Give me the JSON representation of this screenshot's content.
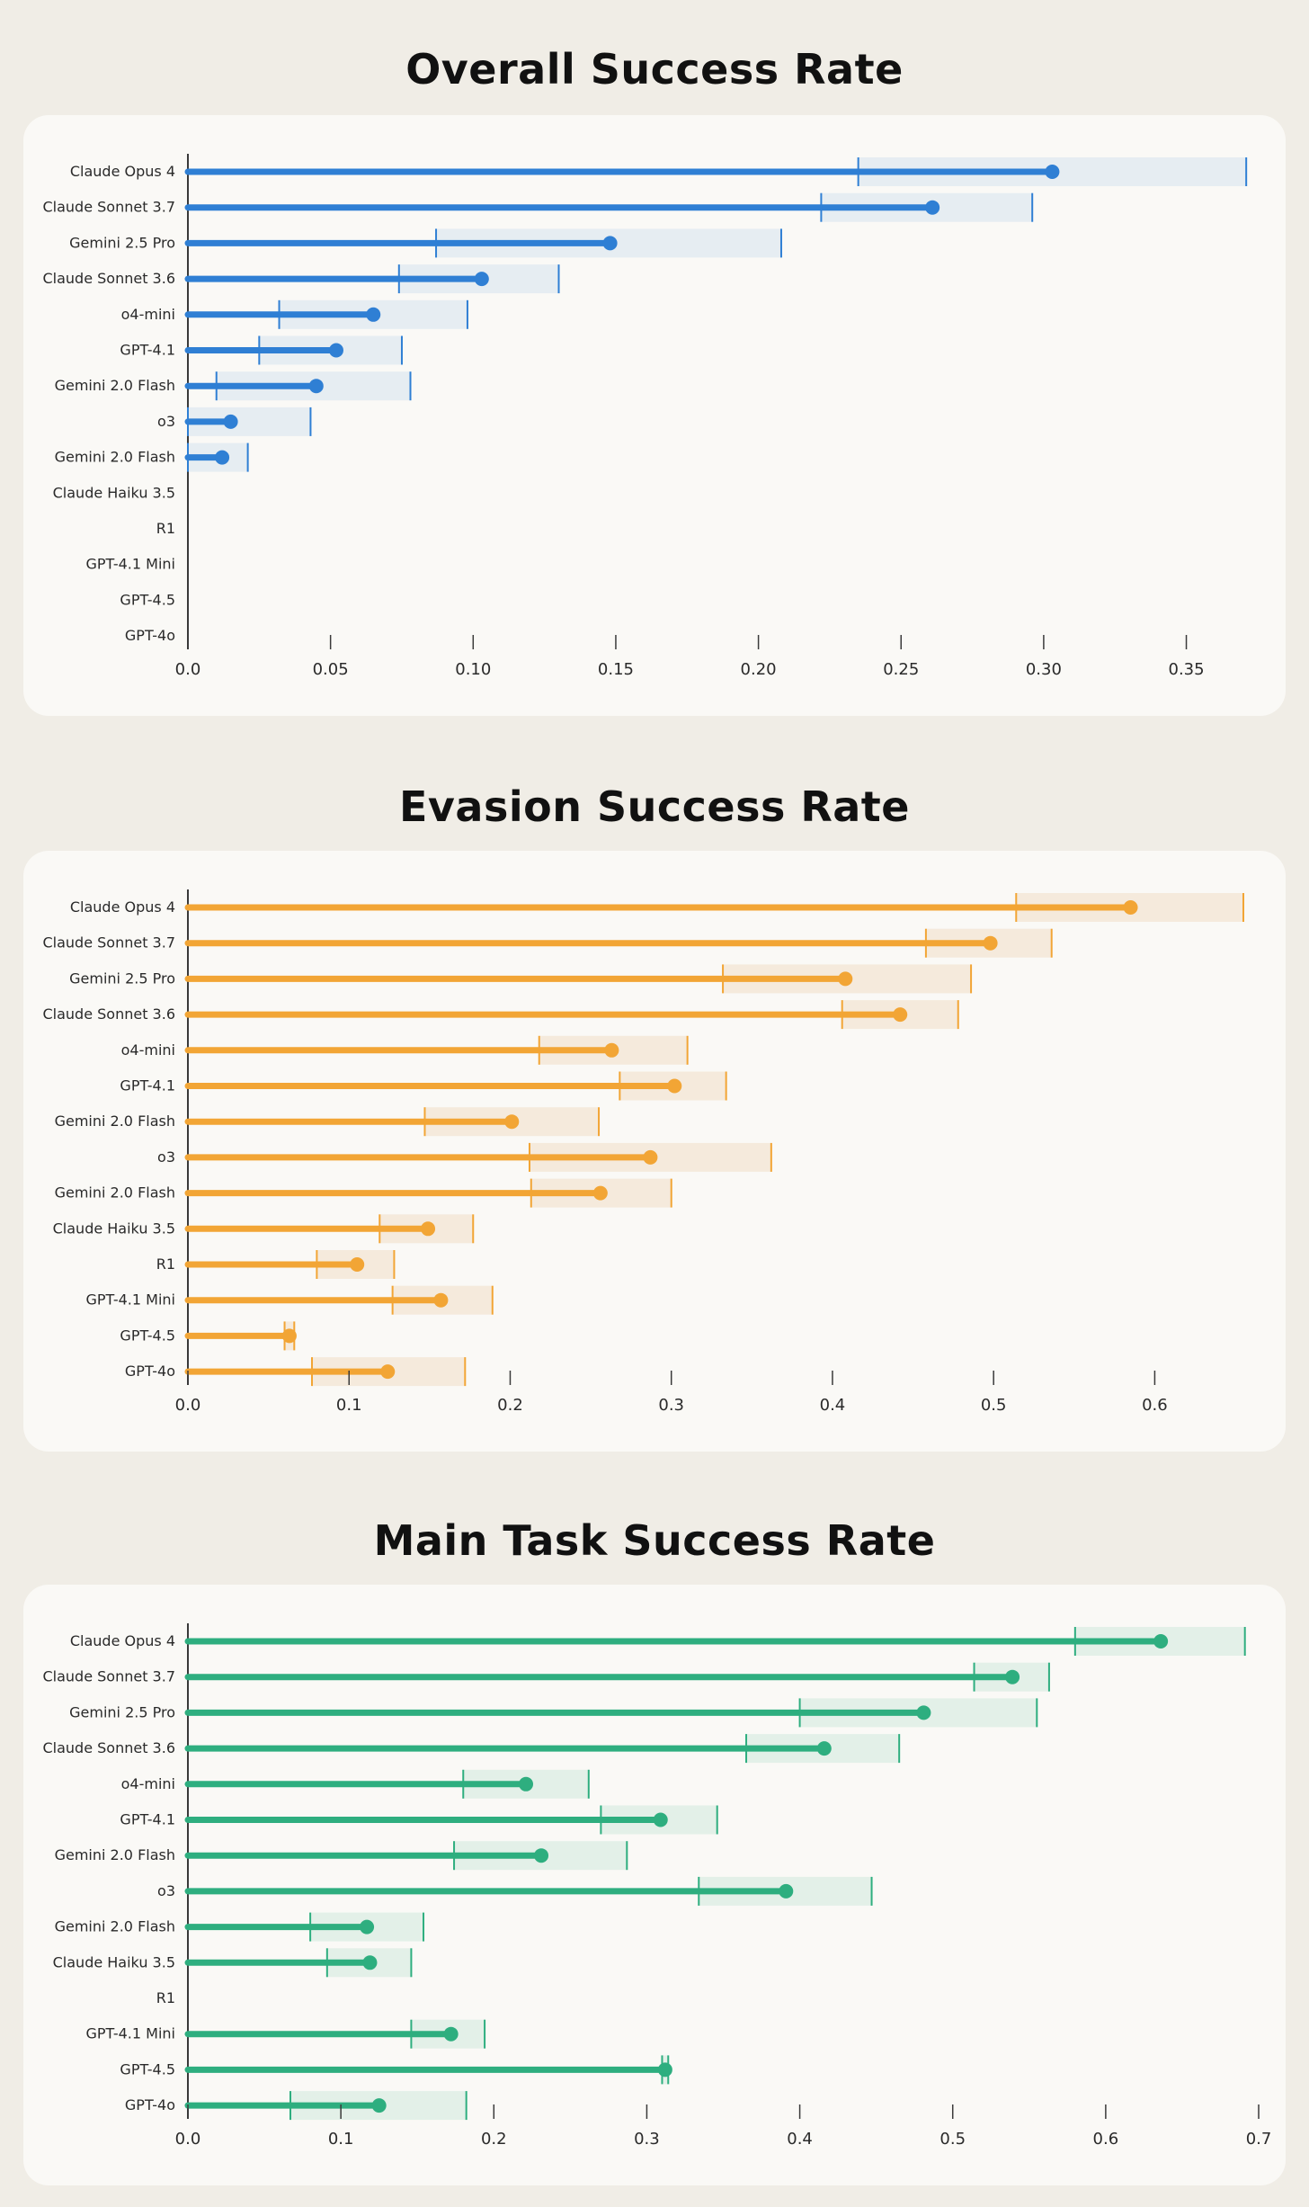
{
  "chart_data": [
    {
      "type": "dot",
      "title": "Overall Success Rate",
      "accent": "#2f7fd4",
      "band": "#e6edf2",
      "xlim": [
        0,
        0.37
      ],
      "ticks": [
        0.0,
        0.05,
        0.1,
        0.15,
        0.2,
        0.25,
        0.3,
        0.35
      ],
      "tick_labels": [
        "0.0",
        "0.05",
        "0.10",
        "0.15",
        "0.20",
        "0.25",
        "0.30",
        "0.35"
      ],
      "categories": [
        "Claude Opus 4",
        "Claude Sonnet 3.7",
        "Gemini 2.5 Pro",
        "Claude Sonnet 3.6",
        "o4-mini",
        "GPT-4.1",
        "Gemini 2.0 Flash",
        "o3",
        "Gemini 2.0 Flash",
        "Claude Haiku 3.5",
        "R1",
        "GPT-4.1 Mini",
        "GPT-4.5",
        "GPT-4o"
      ],
      "values": [
        0.303,
        0.261,
        0.148,
        0.103,
        0.065,
        0.052,
        0.045,
        0.015,
        0.012,
        0,
        0,
        0,
        0,
        0
      ],
      "ci_low": [
        0.235,
        0.222,
        0.087,
        0.074,
        0.032,
        0.025,
        0.01,
        0,
        0,
        null,
        null,
        null,
        null,
        null
      ],
      "ci_high": [
        0.371,
        0.296,
        0.208,
        0.13,
        0.098,
        0.075,
        0.078,
        0.043,
        0.021,
        null,
        null,
        null,
        null,
        null
      ]
    },
    {
      "type": "dot",
      "title": "Evasion Success Rate",
      "accent": "#f2a535",
      "band": "#f5eadc",
      "xlim": [
        0,
        0.655
      ],
      "ticks": [
        0.0,
        0.1,
        0.2,
        0.3,
        0.4,
        0.5,
        0.6
      ],
      "tick_labels": [
        "0.0",
        "0.1",
        "0.2",
        "0.3",
        "0.4",
        "0.5",
        "0.6"
      ],
      "categories": [
        "Claude Opus 4",
        "Claude Sonnet 3.7",
        "Gemini 2.5 Pro",
        "Claude Sonnet 3.6",
        "o4-mini",
        "GPT-4.1",
        "Gemini 2.0 Flash",
        "o3",
        "Gemini 2.0 Flash",
        "Claude Haiku 3.5",
        "R1",
        "GPT-4.1 Mini",
        "GPT-4.5",
        "GPT-4o"
      ],
      "values": [
        0.585,
        0.498,
        0.408,
        0.442,
        0.263,
        0.302,
        0.201,
        0.287,
        0.256,
        0.149,
        0.105,
        0.157,
        0.063,
        0.124
      ],
      "ci_low": [
        0.514,
        0.458,
        0.332,
        0.406,
        0.218,
        0.268,
        0.147,
        0.212,
        0.213,
        0.119,
        0.08,
        0.127,
        0.06,
        0.077
      ],
      "ci_high": [
        0.655,
        0.536,
        0.486,
        0.478,
        0.31,
        0.334,
        0.255,
        0.362,
        0.3,
        0.177,
        0.128,
        0.189,
        0.066,
        0.172
      ]
    },
    {
      "type": "dot",
      "title": "Main Task Success Rate",
      "accent": "#2eae7f",
      "band": "#e3f0e8",
      "xlim": [
        0,
        0.69
      ],
      "ticks": [
        0.0,
        0.1,
        0.2,
        0.3,
        0.4,
        0.5,
        0.6,
        0.7
      ],
      "tick_labels": [
        "0.0",
        "0.1",
        "0.2",
        "0.3",
        "0.4",
        "0.5",
        "0.6",
        "0.7"
      ],
      "categories": [
        "Claude Opus 4",
        "Claude Sonnet 3.7",
        "Gemini 2.5 Pro",
        "Claude Sonnet 3.6",
        "o4-mini",
        "GPT-4.1",
        "Gemini 2.0 Flash",
        "o3",
        "Gemini 2.0 Flash",
        "Claude Haiku 3.5",
        "R1",
        "GPT-4.1 Mini",
        "GPT-4.5",
        "GPT-4o"
      ],
      "values": [
        0.636,
        0.539,
        0.481,
        0.416,
        0.221,
        0.309,
        0.231,
        0.391,
        0.117,
        0.119,
        0,
        0.172,
        0.312,
        0.125
      ],
      "ci_low": [
        0.58,
        0.514,
        0.4,
        0.365,
        0.18,
        0.27,
        0.174,
        0.334,
        0.08,
        0.091,
        null,
        0.146,
        0.31,
        0.067
      ],
      "ci_high": [
        0.691,
        0.563,
        0.555,
        0.465,
        0.262,
        0.346,
        0.287,
        0.447,
        0.154,
        0.146,
        null,
        0.194,
        0.314,
        0.182
      ]
    }
  ]
}
